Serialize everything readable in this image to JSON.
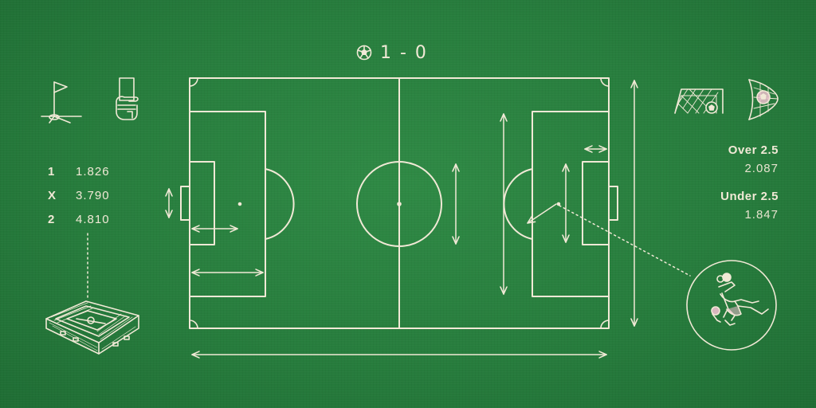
{
  "score": {
    "text": "1 - 0"
  },
  "odds": [
    {
      "key": "1",
      "value": "1.826"
    },
    {
      "key": "X",
      "value": "3.790"
    },
    {
      "key": "2",
      "value": "4.810"
    }
  ],
  "over_under": [
    {
      "label": "Over 2.5",
      "value": "2.087"
    },
    {
      "label": "Under 2.5",
      "value": "1.847"
    }
  ],
  "icons": [
    "football-icon",
    "corner-flag-icon",
    "card-in-hand-icon",
    "goal-net-icon",
    "ball-in-net-icon",
    "stadium-icon",
    "bicycle-kick-player-icon"
  ],
  "colors": {
    "background": "#277d3d",
    "line": "#f1e9d6"
  }
}
